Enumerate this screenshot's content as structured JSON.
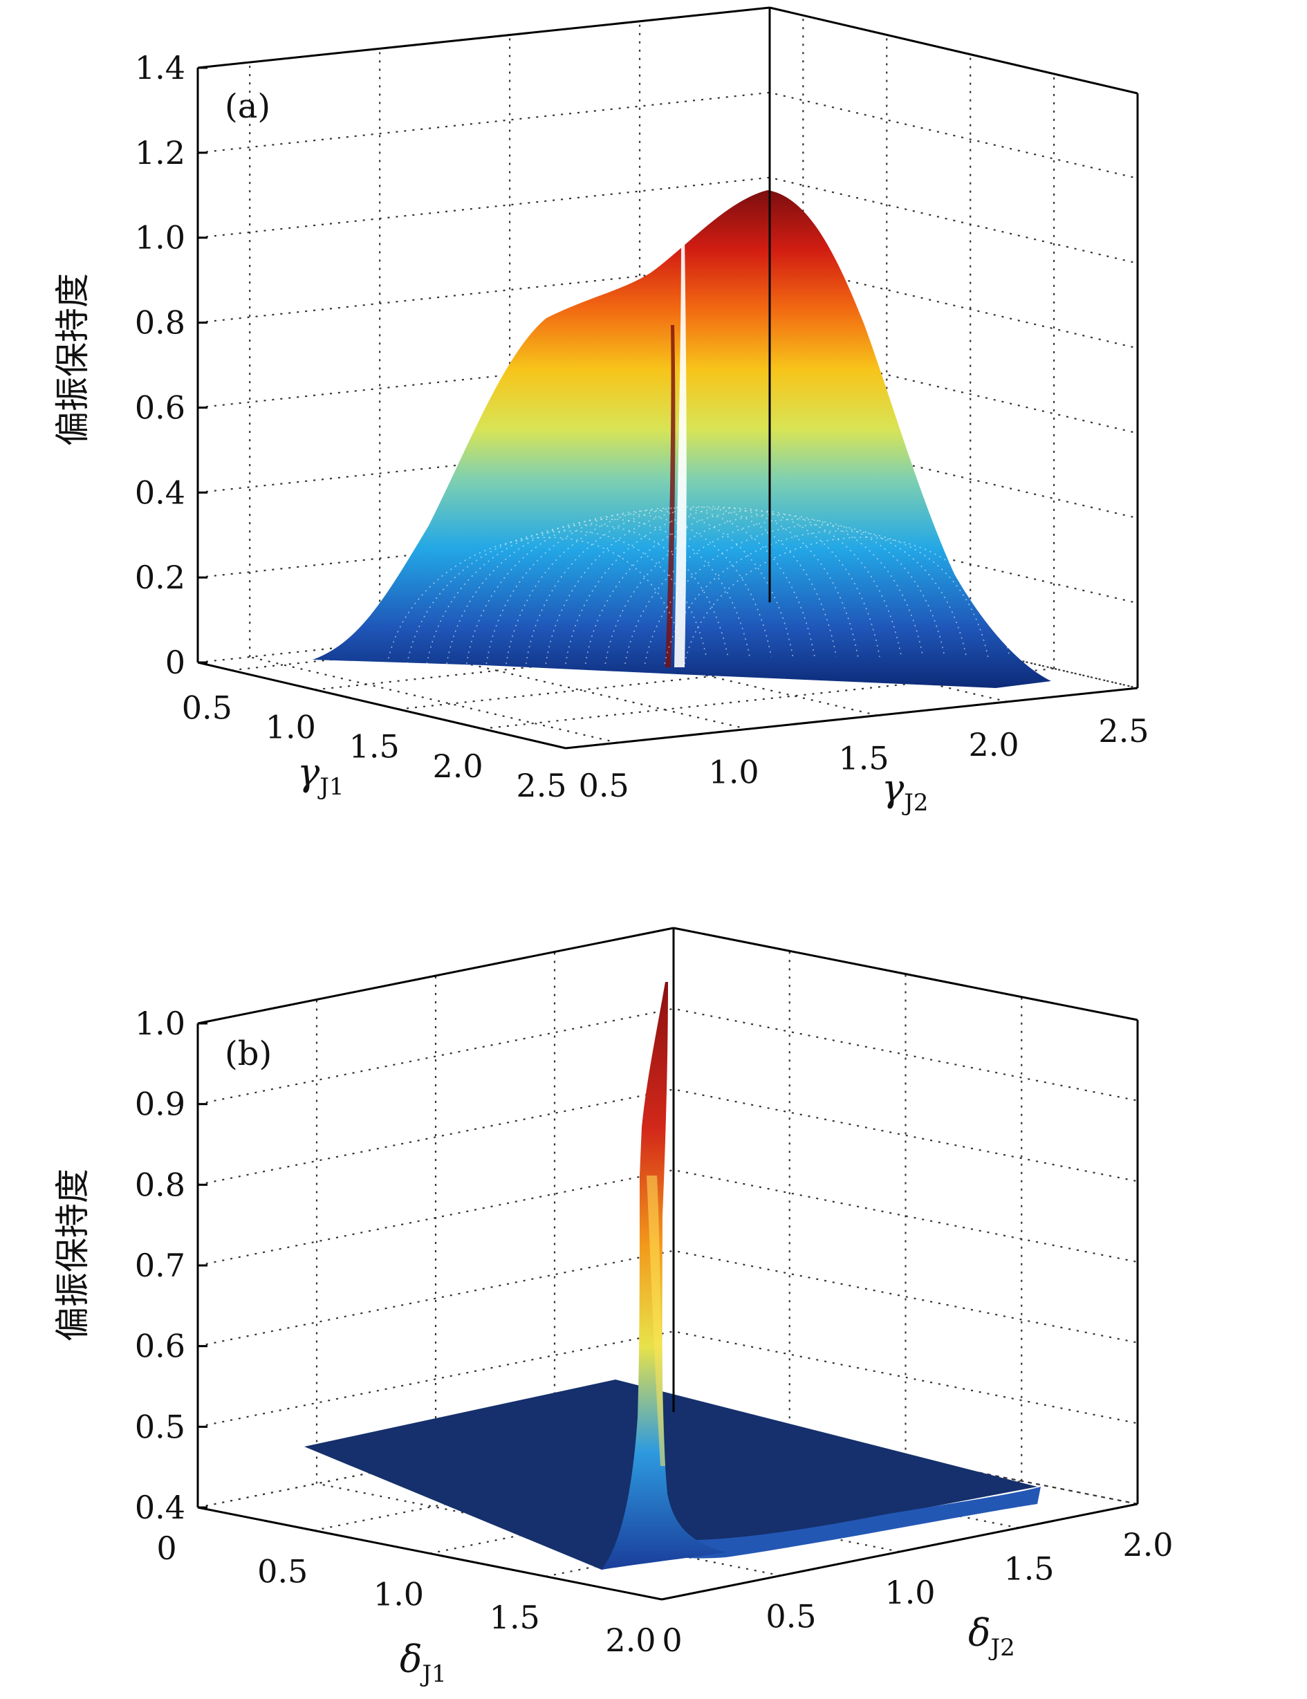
{
  "chart_data": [
    {
      "type": "surface3d",
      "panel_label": "(a)",
      "zlabel": "偏振保持度",
      "xlabel": {
        "symbol": "γ",
        "sub": "J1"
      },
      "ylabel": {
        "symbol": "γ",
        "sub": "J2"
      },
      "x_ticks": [
        "2.5",
        "2.0",
        "1.5",
        "1.0",
        "0.5"
      ],
      "y_ticks": [
        "0.5",
        "1.0",
        "1.5",
        "2.0",
        "2.5"
      ],
      "z_ticks": [
        "0",
        "0.2",
        "0.4",
        "0.6",
        "0.8",
        "1.0",
        "1.2",
        "1.4"
      ],
      "xlim": [
        0.3,
        2.5
      ],
      "ylim": [
        0.3,
        2.5
      ],
      "zlim": [
        0,
        1.4
      ],
      "peak": {
        "x": 2.0,
        "y": 1.1,
        "z": 1.0
      },
      "colormap": "jet",
      "grid": true
    },
    {
      "type": "surface3d",
      "panel_label": "(b)",
      "zlabel": "偏振保持度",
      "xlabel": {
        "symbol": "δ",
        "sub": "J1"
      },
      "ylabel": {
        "symbol": "δ",
        "sub": "J2"
      },
      "x_ticks": [
        "2.0",
        "1.5",
        "1.0",
        "0.5",
        "0"
      ],
      "y_ticks": [
        "0",
        "0.5",
        "1.0",
        "1.5",
        "2.0"
      ],
      "z_ticks": [
        "0.4",
        "0.5",
        "0.6",
        "0.7",
        "0.8",
        "0.9",
        "1.0"
      ],
      "xlim": [
        0,
        2.0
      ],
      "ylim": [
        0,
        2.0
      ],
      "zlim": [
        0.4,
        1.0
      ],
      "base_level": 0.5,
      "peak": {
        "x": 0.0,
        "y": 0.0,
        "z": 1.0
      },
      "colormap": "jet",
      "grid": true
    }
  ]
}
